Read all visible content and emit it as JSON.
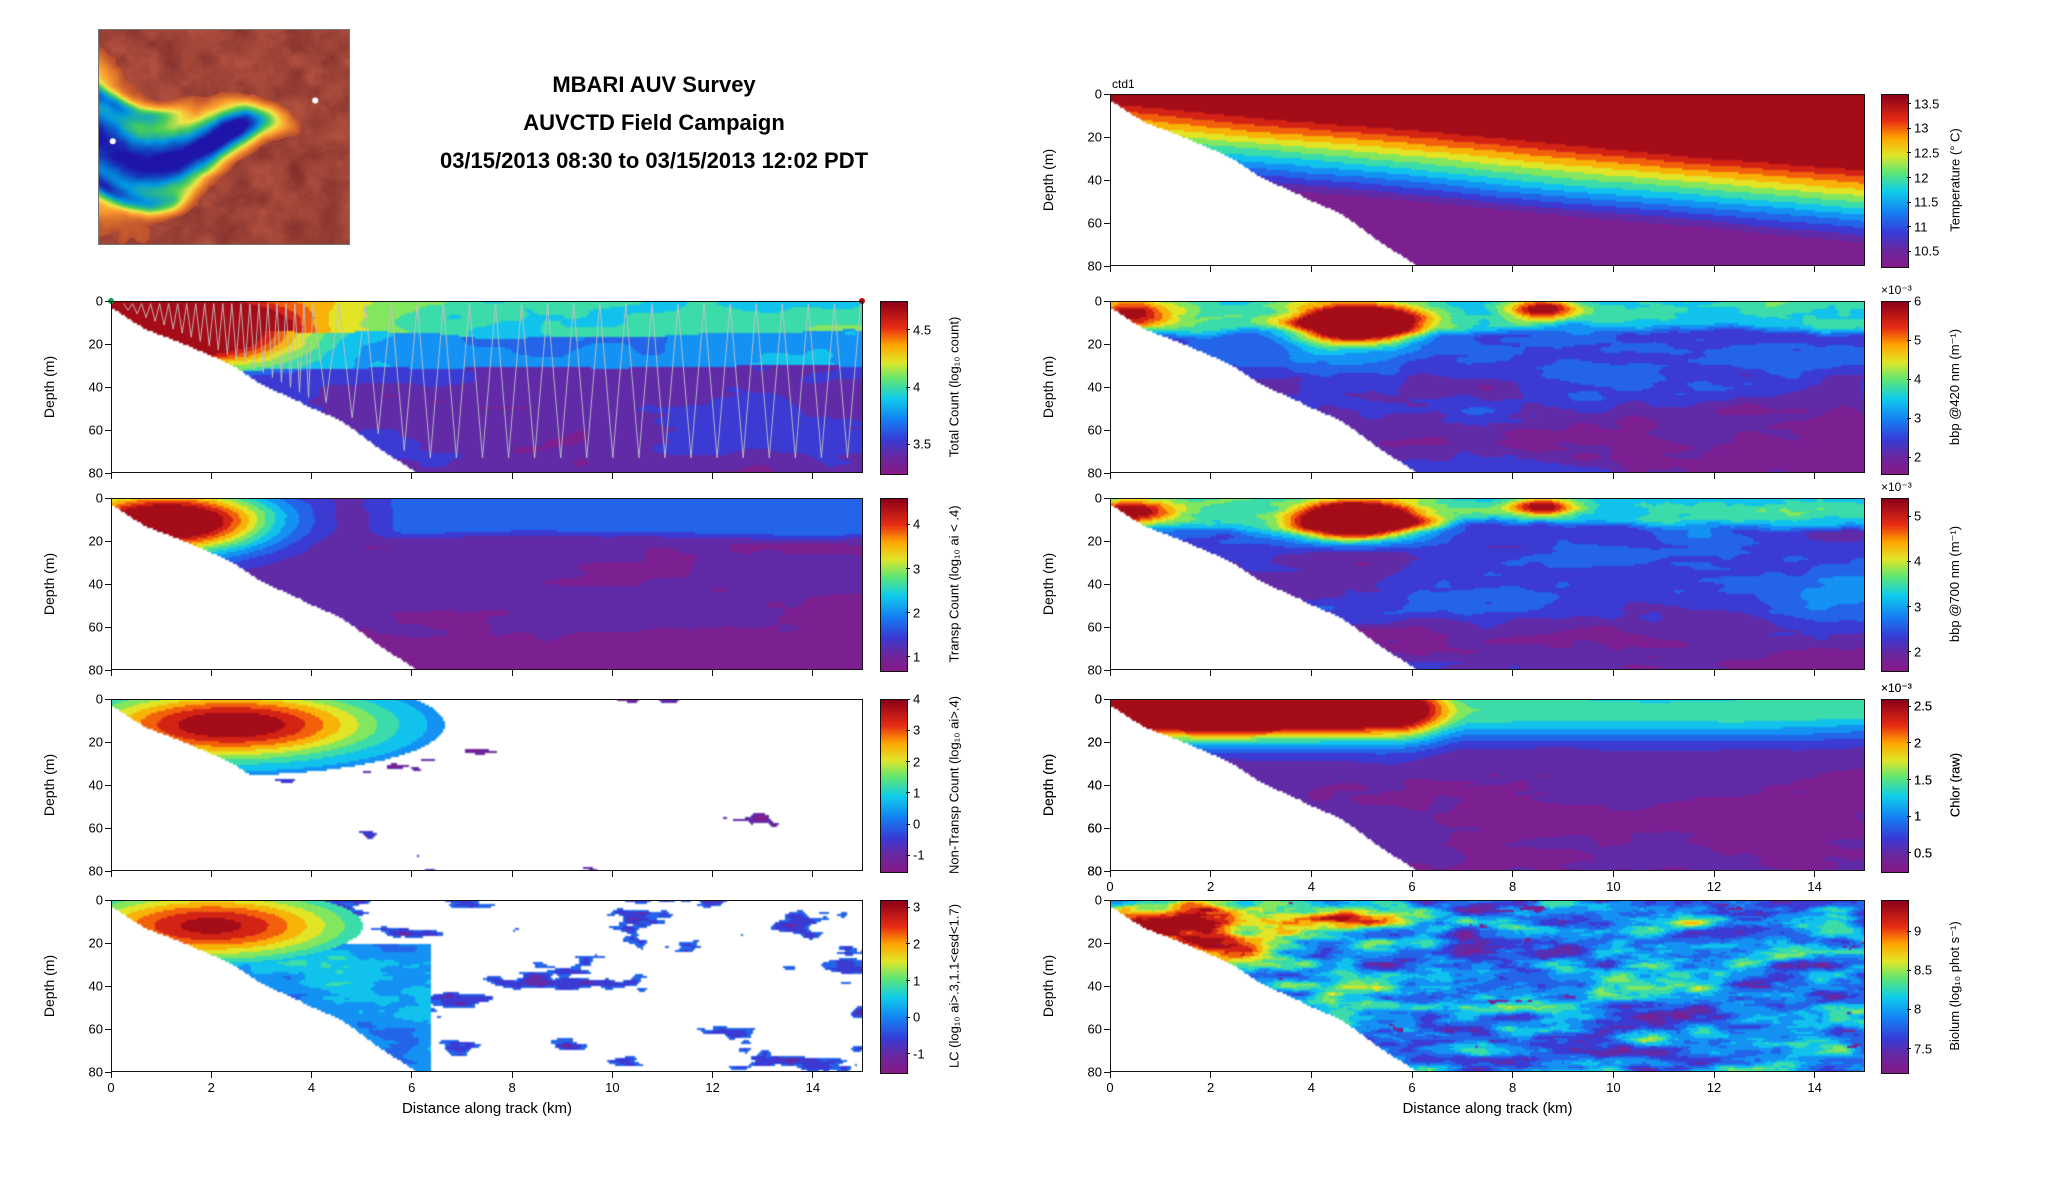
{
  "title": {
    "line1": "MBARI AUV Survey",
    "line2": "AUVCTD Field Campaign",
    "line3": "03/15/2013 08:30 to 03/15/2013 12:02 PDT"
  },
  "axes": {
    "x_label": "Distance along track (km)",
    "y_label": "Depth (m)",
    "x_range": [
      0,
      15
    ],
    "y_range": [
      0,
      80
    ],
    "x_ticks": [
      0,
      2,
      4,
      6,
      8,
      10,
      12,
      14
    ],
    "x_tick_labels": [
      "0",
      "2",
      "4",
      "6",
      "8",
      "10",
      "12",
      "14"
    ],
    "y_ticks": [
      0,
      20,
      40,
      60,
      80
    ],
    "y_tick_labels": [
      "0",
      "20",
      "40",
      "60",
      "80"
    ]
  },
  "inset_map": {
    "description": "Color shaded-relief map of the Monterey Bay / submarine canyon survey region with two white station dots"
  },
  "panels": [
    {
      "key": "total-count",
      "annotation": "",
      "markers": {
        "start": "#00a550",
        "end": "#cf0000"
      },
      "colorbar": {
        "label": "Total Count (log₁₀ count)",
        "exponent": "",
        "tick_labels": [
          "4.5",
          "4",
          "3.5"
        ],
        "tick_values": [
          4.5,
          4,
          3.5
        ],
        "range": [
          3.25,
          4.75
        ]
      }
    },
    {
      "key": "transp-count",
      "annotation": "",
      "colorbar": {
        "label": "Transp Count (log₁₀ ai < .4)",
        "exponent": "",
        "tick_labels": [
          "4",
          "3",
          "2",
          "1"
        ],
        "tick_values": [
          4,
          3,
          2,
          1
        ],
        "range": [
          0.7,
          4.6
        ]
      }
    },
    {
      "key": "non-transp-count",
      "annotation": "",
      "colorbar": {
        "label": "Non-Transp Count (log₁₀ ai>.4)",
        "exponent": "",
        "tick_labels": [
          "4",
          "3",
          "2",
          "1",
          "0",
          "-1"
        ],
        "tick_values": [
          4,
          3,
          2,
          1,
          0,
          -1
        ],
        "range": [
          -1.5,
          4.0
        ]
      }
    },
    {
      "key": "lc",
      "annotation": "",
      "colorbar": {
        "label": "LC (log₁₀ ai>.3,1.1<esd<1.7)",
        "exponent": "",
        "tick_labels": [
          "3",
          "2",
          "1",
          "0",
          "-1"
        ],
        "tick_values": [
          3,
          2,
          1,
          0,
          -1
        ],
        "range": [
          -1.5,
          3.2
        ]
      }
    },
    {
      "key": "temperature",
      "annotation": "ctd1",
      "colorbar": {
        "label": "Temperature (° C)",
        "exponent": "",
        "tick_labels": [
          "13.5",
          "13",
          "12.5",
          "12",
          "11.5",
          "11",
          "10.5"
        ],
        "tick_values": [
          13.5,
          13,
          12.5,
          12,
          11.5,
          11,
          10.5
        ],
        "range": [
          10.2,
          13.7
        ]
      }
    },
    {
      "key": "bbp420",
      "annotation": "",
      "colorbar": {
        "label": "bbp @420 nm (m⁻¹)",
        "exponent": "×10⁻³",
        "tick_labels": [
          "6",
          "5",
          "4",
          "3",
          "2"
        ],
        "tick_values": [
          6,
          5,
          4,
          3,
          2
        ],
        "range": [
          1.6,
          6.0
        ]
      }
    },
    {
      "key": "bbp700",
      "annotation": "",
      "colorbar": {
        "label": "bbp @700 nm (m⁻¹)",
        "exponent": "×10⁻³",
        "tick_labels": [
          "5",
          "4",
          "3",
          "2"
        ],
        "tick_values": [
          5,
          4,
          3,
          2
        ],
        "range": [
          1.6,
          5.4
        ]
      }
    },
    {
      "key": "chlor",
      "annotation": "",
      "colorbar": {
        "label": "Chlor (raw)",
        "exponent": "×10⁻³",
        "tick_labels": [
          "2.5",
          "2",
          "1.5",
          "1",
          "0.5"
        ],
        "tick_values": [
          2.5,
          2,
          1.5,
          1,
          0.5
        ],
        "range": [
          0.25,
          2.6
        ]
      }
    },
    {
      "key": "biolum",
      "annotation": "",
      "colorbar": {
        "label": "Biolum (log₁₀ phot s⁻¹)",
        "exponent": "",
        "tick_labels": [
          "9",
          "8.5",
          "8",
          "7.5"
        ],
        "tick_values": [
          9,
          8.5,
          8,
          7.5
        ],
        "range": [
          7.2,
          9.4
        ]
      }
    }
  ],
  "chart_data": [
    {
      "panel": "total-count",
      "type": "heatmap",
      "xlabel": "Distance along track (km)",
      "ylabel": "Depth (m)",
      "xlim": [
        0,
        15
      ],
      "ylim": [
        80,
        0
      ],
      "value_label": "Total Count (log₁₀ count)",
      "value_range": [
        3.25,
        4.75
      ],
      "description": "High counts (>4.5, dark red) in upper 30 m over first 4 km; cyan-green band above ~20 m along whole transect; low purple values (~3.4) below 30 m with blue patches; gray sawtooth AUV yo-yo track overlaid; green start and red end markers at surface."
    },
    {
      "panel": "transp-count",
      "type": "heatmap",
      "xlabel": "Distance along track (km)",
      "ylabel": "Depth (m)",
      "xlim": [
        0,
        15
      ],
      "ylim": [
        80,
        0
      ],
      "value_label": "Transp Count (log₁₀ ai < .4)",
      "value_range": [
        0.7,
        4.6
      ],
      "description": "Dark red maximum (~4.5) above 25 m within 3 km of start grading through yellow/green/cyan near 4-6 km; dark blue band above ~20 m beyond 6 km; magenta background (~1) at depth."
    },
    {
      "panel": "non-transp-count",
      "type": "heatmap",
      "xlabel": "Distance along track (km)",
      "ylabel": "Depth (m)",
      "xlim": [
        0,
        15
      ],
      "ylim": [
        80,
        0
      ],
      "value_label": "Non-Transp Count (log₁₀ ai>.4)",
      "value_range": [
        -1.5,
        4.0
      ],
      "description": "Red patch (~4) above 28 m in first 5.5 km with narrow yellow-green-cyan fringe; elsewhere mostly empty white with scattered small purple patches (~ -0.5) and dashes along the seafloor slope."
    },
    {
      "panel": "lc",
      "type": "heatmap",
      "xlabel": "Distance along track (km)",
      "ylabel": "Depth (m)",
      "xlim": [
        0,
        15
      ],
      "ylim": [
        80,
        0
      ],
      "value_label": "LC (log₁₀ ai>.3,1.1<esd<1.7)",
      "value_range": [
        -1.5,
        3.2
      ],
      "description": "Red patch (~3) above 25 m in first 5 km; cyan-blue region along the slope 25-75 m between 2.5 and 6 km; many scattered dark blue blobs (~0) over white background offshore."
    },
    {
      "panel": "temperature",
      "type": "heatmap",
      "xlabel": "Distance along track (km)",
      "ylabel": "Depth (m)",
      "xlim": [
        0,
        15
      ],
      "ylim": [
        80,
        0
      ],
      "value_label": "Temperature (° C)",
      "value_range": [
        10.2,
        13.7
      ],
      "description": "Warm ~13.5 °C surface layer thickening from ~5 m inshore to ~35 m at 15 km; isotherms slope downward offshore through yellow, green, cyan, blue; coldest water (<10.5 °C, purple) at depth; panel annotated ctd1."
    },
    {
      "panel": "bbp420",
      "type": "heatmap",
      "xlabel": "Distance along track (km)",
      "ylabel": "Depth (m)",
      "xlim": [
        0,
        15
      ],
      "ylim": [
        80,
        0
      ],
      "value_label": "bbp @420 nm (m⁻¹) ×10⁻³",
      "value_range": [
        1.6,
        6.0
      ],
      "description": "Strong backscatter maximum (>6e-3, dark red) near 4-6 km at 5-20 m; smaller maximum near 8.5 km at surface; elevated cyan-yellow surface band above ~14 m; dark purple-blue background (~2e-3) at depth."
    },
    {
      "panel": "bbp700",
      "type": "heatmap",
      "xlabel": "Distance along track (km)",
      "ylabel": "Depth (m)",
      "xlim": [
        0,
        15
      ],
      "ylim": [
        80,
        0
      ],
      "value_label": "bbp @700 nm (m⁻¹) ×10⁻³",
      "value_range": [
        1.6,
        5.4
      ],
      "description": "Pattern nearly identical to bbp @420 nm: red maximum near 4-6 km at 5-20 m, cyan surface band, dark purple-blue interior."
    },
    {
      "panel": "chlor",
      "type": "heatmap",
      "xlabel": "Distance along track (km)",
      "ylabel": "Depth (m)",
      "xlim": [
        0,
        15
      ],
      "ylim": [
        80,
        0
      ],
      "value_label": "Chlor (raw) ×10⁻³",
      "value_range": [
        0.25,
        2.6
      ],
      "description": "High raw chlorophyll (red, ~2.5) above ~20 m within first 6 km dropping to a cyan-green surface band offshore; uniform low magenta (~0.4) below ~25 m."
    },
    {
      "panel": "biolum",
      "type": "heatmap",
      "xlabel": "Distance along track (km)",
      "ylabel": "Depth (m)",
      "xlim": [
        0,
        15
      ],
      "ylim": [
        80,
        0
      ],
      "value_label": "Biolum (log₁₀ phot s⁻¹)",
      "value_range": [
        7.2,
        9.4
      ],
      "description": "Very patchy field: highest values (~9, red) in first 3 km above 30 m; speckled cyan-blue texture (~8) with scattered magenta minima throughout the offshore section."
    }
  ]
}
